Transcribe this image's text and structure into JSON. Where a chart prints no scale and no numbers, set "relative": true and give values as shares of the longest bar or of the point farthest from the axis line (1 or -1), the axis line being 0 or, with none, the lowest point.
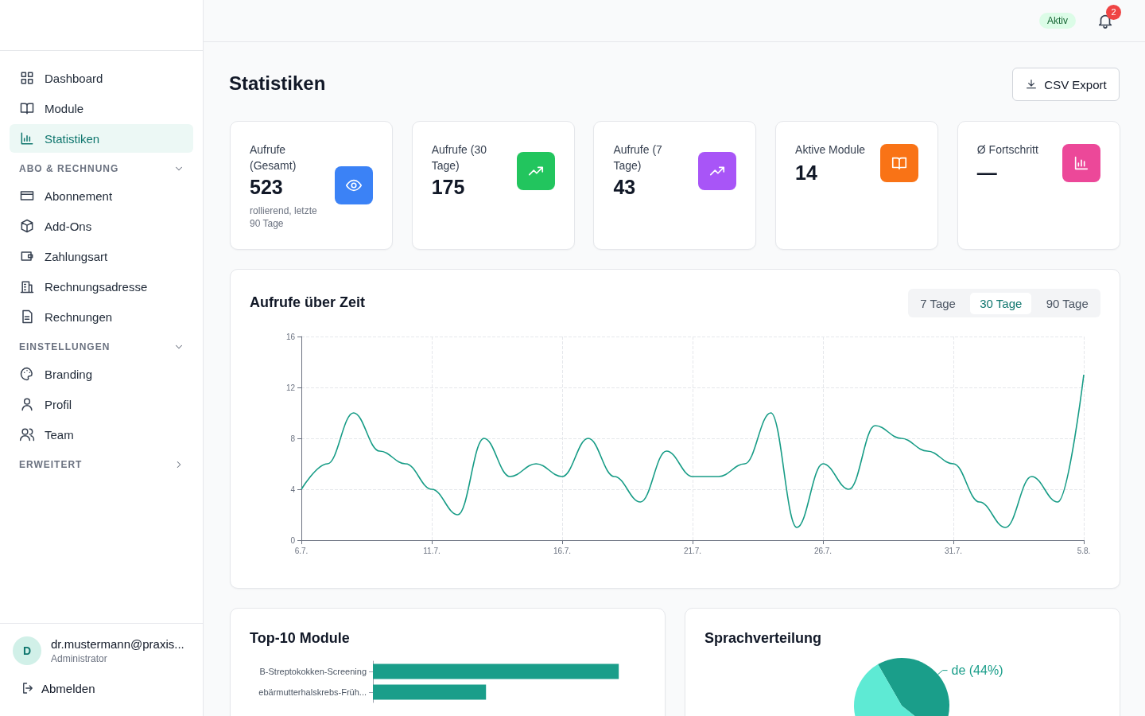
{
  "chart_data": [
    {
      "type": "other",
      "title": "Statistiken",
      "annotations": [
        "Dashboard",
        "Module",
        "Statistiken",
        "ABO & RECHNUNG",
        "Abonnement",
        "Add-Ons",
        "Zahlungsart",
        "Rechnungsadresse",
        "Rechnungen",
        "EINSTELLUNGEN",
        "Branding",
        "Profil",
        "Team",
        "ERWEITERT",
        "D",
        "dr.mustermann@praxis...",
        "Administrator",
        "Abmelden",
        "Aktiv",
        "2",
        "CSV Export"
      ]
    },
    {
      "type": "other",
      "title": "Aufrufe (Gesamt)",
      "annotations": [
        "523",
        "rollierend, letzte 90 Tage"
      ],
      "color": "#3b82f6"
    },
    {
      "type": "other",
      "title": "Aufrufe (30 Tage)",
      "annotations": [
        "175"
      ],
      "color": "#22c55e"
    },
    {
      "type": "other",
      "title": "Aufrufe (7 Tage)",
      "annotations": [
        "43"
      ],
      "color": "#a855f7"
    },
    {
      "type": "other",
      "title": "Aktive Module",
      "annotations": [
        "14"
      ],
      "color": "#f97316"
    },
    {
      "type": "other",
      "title": "Ø Fortschritt",
      "annotations": [
        "—"
      ],
      "color": "#ec4899"
    },
    {
      "type": "line",
      "title": "Aufrufe über Zeit",
      "annotations": [
        "7 Tage",
        "30 Tage",
        "90 Tage"
      ],
      "categories": [
        "6.7.",
        null,
        null,
        null,
        null,
        "11.7.",
        null,
        null,
        null,
        null,
        "16.7.",
        null,
        null,
        null,
        null,
        "21.7.",
        null,
        null,
        null,
        null,
        "26.7.",
        null,
        null,
        null,
        null,
        "31.7.",
        null,
        null,
        null,
        null,
        "5.8."
      ],
      "values": [
        4,
        6,
        10,
        7,
        6,
        4,
        2,
        8,
        5,
        6,
        5,
        8,
        5,
        3,
        7,
        5,
        5,
        6,
        10,
        1,
        6,
        4,
        9,
        8,
        7,
        6,
        3,
        1,
        5,
        3,
        13
      ],
      "color": "#179c86",
      "ylim": [
        0,
        16
      ],
      "yticks": [
        0,
        4,
        8,
        12,
        16
      ],
      "grid": true,
      "marker": "none"
    },
    {
      "type": "bar",
      "title": "Top-10 Module",
      "orientation": "horizontal",
      "relative": true,
      "categories": [
        "B-Streptokokken-Screening",
        "ebärmutterhalskrebs-Früh..."
      ],
      "values": [
        1,
        0.46
      ],
      "color": "#1a9e8a"
    },
    {
      "type": "pie",
      "title": "Sprachverteilung",
      "categories": [
        "de",
        null
      ],
      "values": [
        44,
        56
      ],
      "value_labels": [
        "(44%)",
        null
      ],
      "colors": [
        "#1a9e8a",
        "#5eead4"
      ]
    }
  ]
}
